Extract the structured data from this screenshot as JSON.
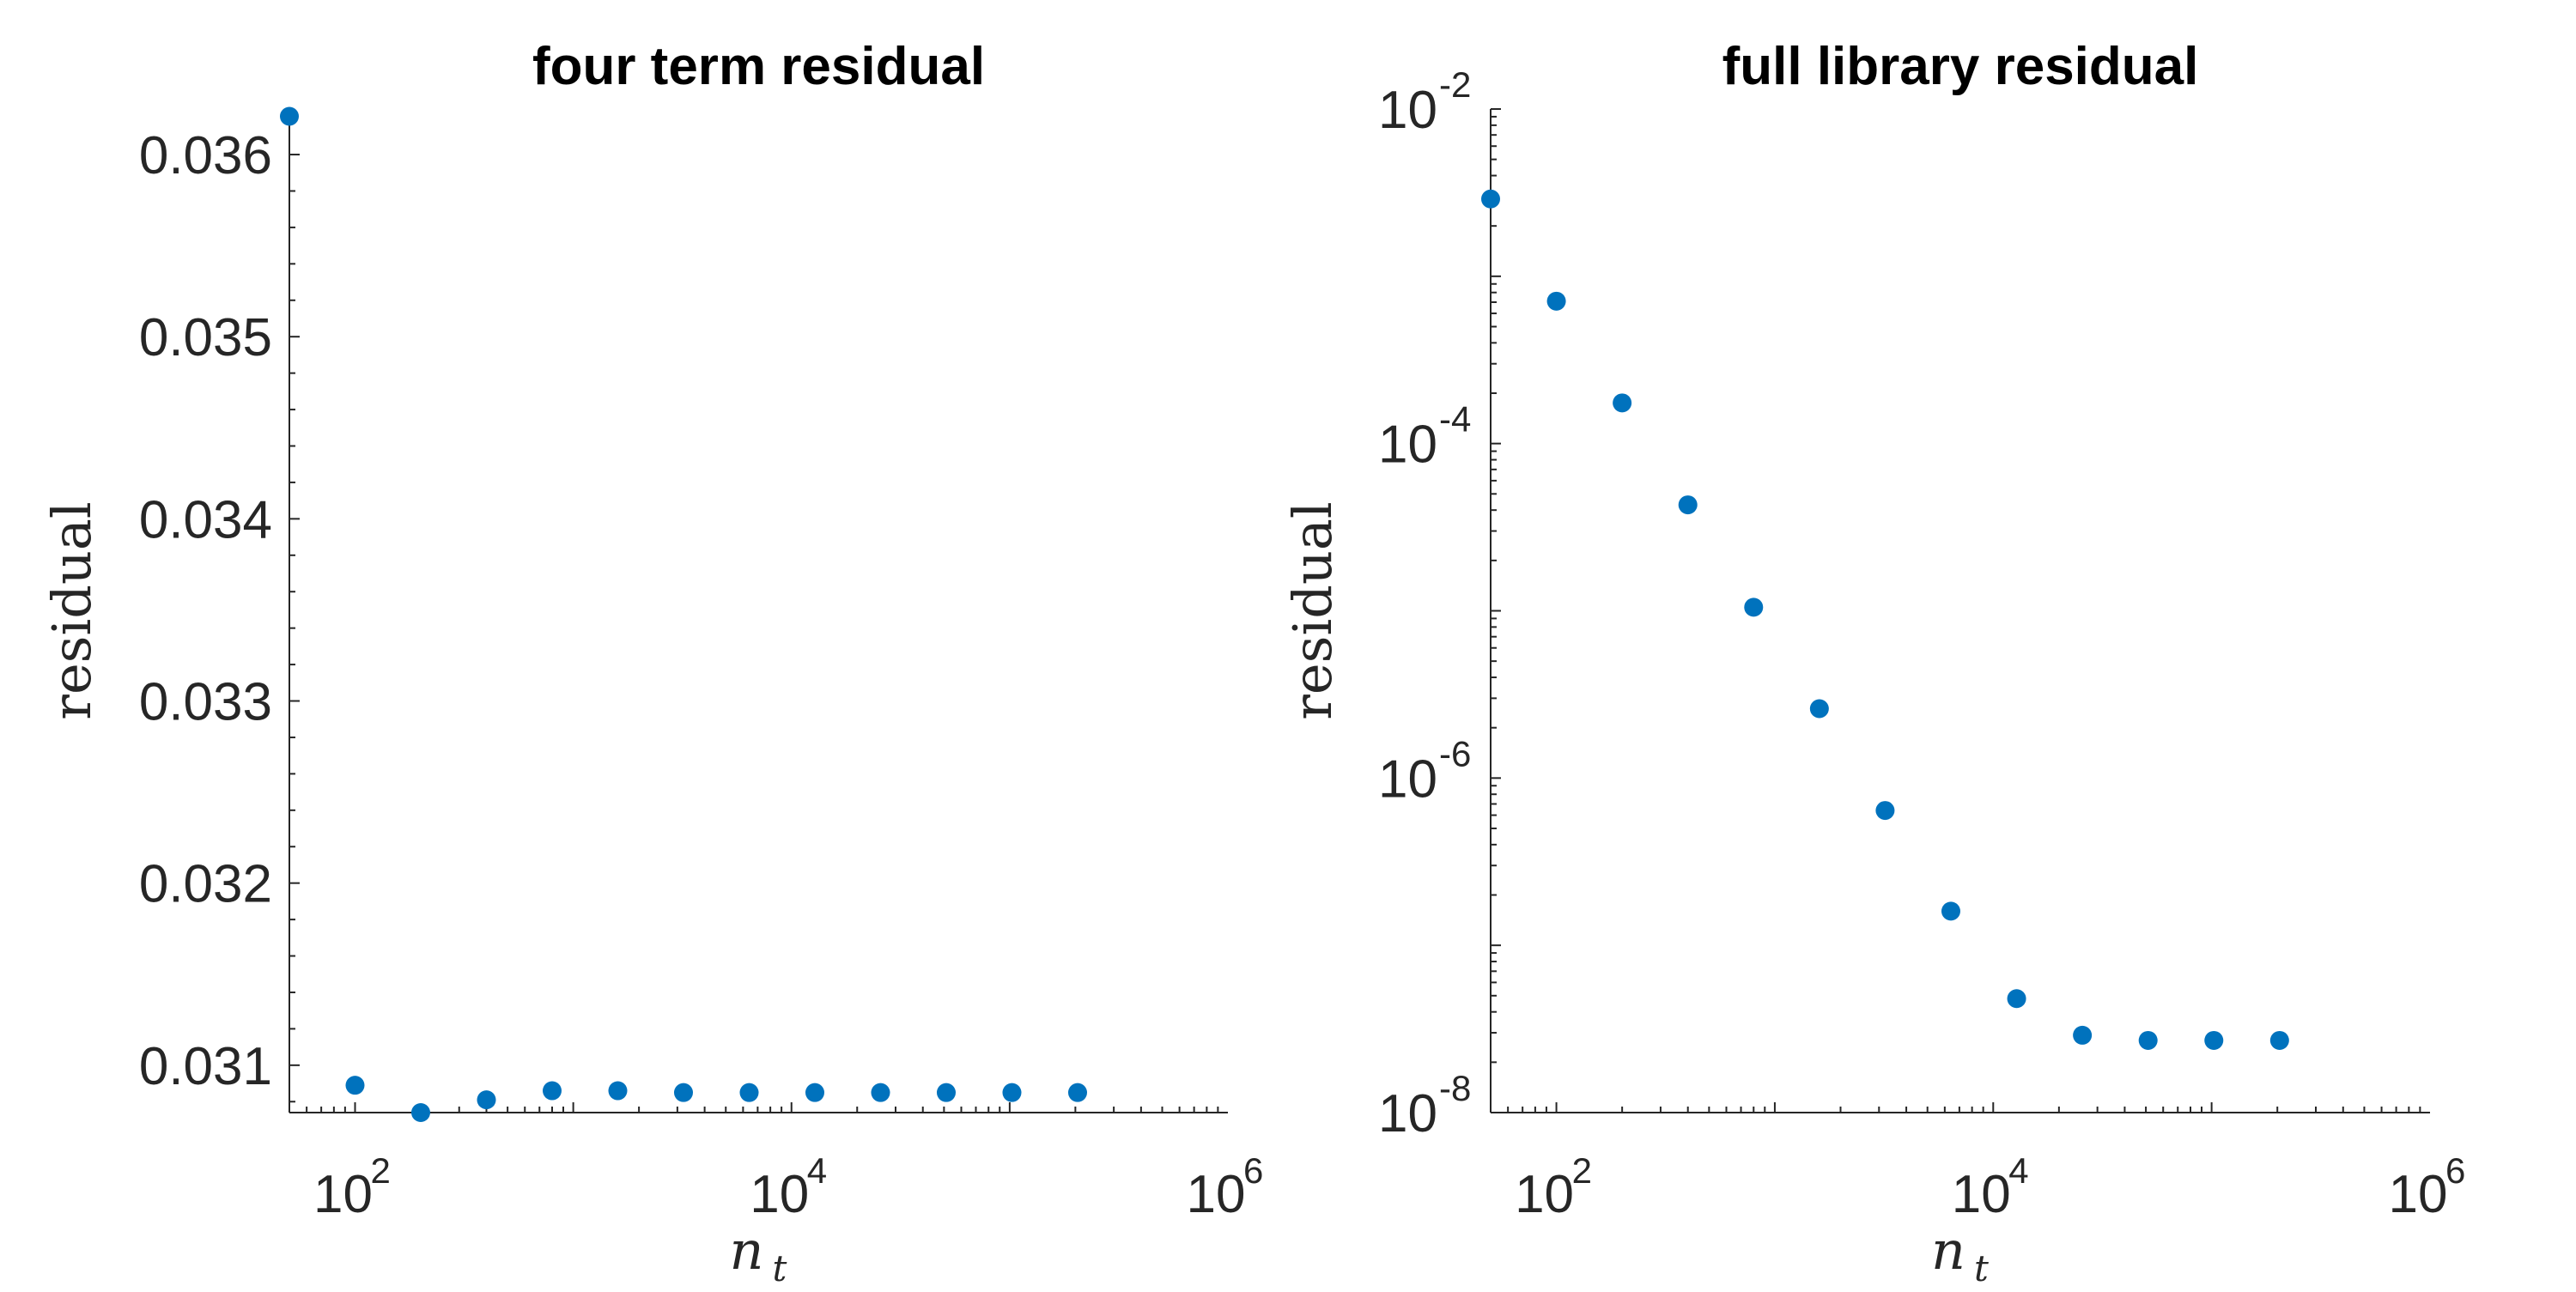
{
  "chart_data": [
    {
      "type": "scatter",
      "title": "four term residual",
      "xlabel": "n",
      "xlabel_subscript": "t",
      "ylabel": "residual",
      "xscale": "log",
      "yscale": "linear",
      "xlim": [
        50,
        1000000
      ],
      "ylim": [
        0.03074,
        0.03625
      ],
      "xticks": [
        100,
        10000,
        1000000
      ],
      "xtick_labels": [
        {
          "base": "10",
          "exp": "2"
        },
        {
          "base": "10",
          "exp": "4"
        },
        {
          "base": "10",
          "exp": "6"
        }
      ],
      "yticks": [
        0.031,
        0.032,
        0.033,
        0.034,
        0.035,
        0.036
      ],
      "ytick_labels": [
        "0.031",
        "0.032",
        "0.033",
        "0.034",
        "0.035",
        "0.036"
      ],
      "grid": false,
      "marker_color": "#0072BD",
      "x": [
        50,
        100,
        200,
        400,
        800,
        1600,
        3200,
        6400,
        12800,
        25600,
        51200,
        102400,
        204800
      ],
      "y": [
        0.03621,
        0.03089,
        0.03074,
        0.03081,
        0.03086,
        0.03086,
        0.03085,
        0.03085,
        0.03085,
        0.03085,
        0.03085,
        0.03085,
        0.03085
      ]
    },
    {
      "type": "scatter",
      "title": "full library residual",
      "xlabel": "n",
      "xlabel_subscript": "t",
      "ylabel": "residual",
      "xscale": "log",
      "yscale": "log",
      "xlim": [
        50,
        1000000
      ],
      "ylim": [
        1e-08,
        0.01
      ],
      "xticks": [
        100,
        10000,
        1000000
      ],
      "xtick_labels": [
        {
          "base": "10",
          "exp": "2"
        },
        {
          "base": "10",
          "exp": "4"
        },
        {
          "base": "10",
          "exp": "6"
        }
      ],
      "yticks": [
        1e-08,
        1e-06,
        0.0001,
        0.01
      ],
      "ytick_labels": [
        {
          "base": "10",
          "exp": "-8"
        },
        {
          "base": "10",
          "exp": "-6"
        },
        {
          "base": "10",
          "exp": "-4"
        },
        {
          "base": "10",
          "exp": "-2"
        }
      ],
      "grid": false,
      "marker_color": "#0072BD",
      "x": [
        50,
        100,
        200,
        400,
        800,
        1600,
        3200,
        6400,
        12800,
        25600,
        51200,
        102400,
        204800
      ],
      "y": [
        0.0029,
        0.00071,
        0.000175,
        4.3e-05,
        1.05e-05,
        2.6e-06,
        6.4e-07,
        1.6e-07,
        4.8e-08,
        2.9e-08,
        2.7e-08,
        2.7e-08,
        2.7e-08
      ]
    }
  ]
}
